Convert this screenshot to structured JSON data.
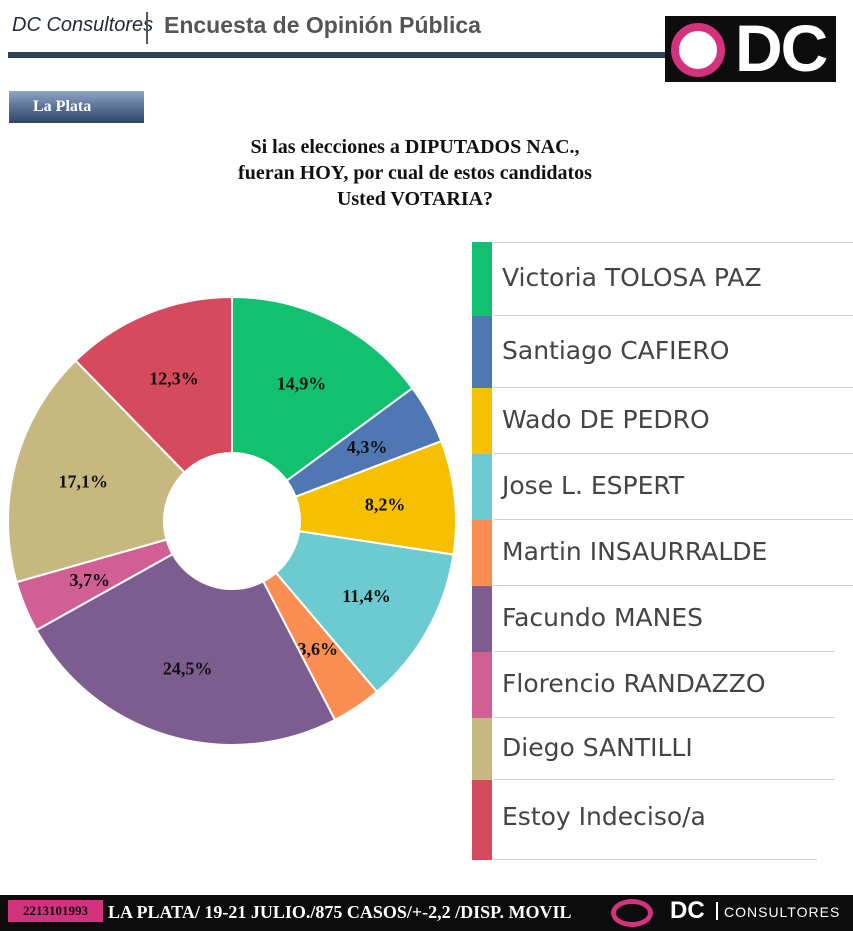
{
  "header": {
    "brand": "DC Consultores",
    "title": "Encuesta de Opinión Pública",
    "logo_text": "DC"
  },
  "city_tag": "La Plata",
  "question": {
    "line1": "Si las elecciones a DIPUTADOS NAC.,",
    "line2": "fueran HOY, por cual de estos candidatos",
    "line3": "Usted VOTARIA?"
  },
  "chart_data": {
    "type": "pie",
    "donut": true,
    "legend_position": "right",
    "slices": [
      {
        "label": "Victoria TOLOSA PAZ",
        "value": 14.9,
        "display": "14,9%",
        "color": "#12c16f"
      },
      {
        "label": "Santiago CAFIERO",
        "value": 4.3,
        "display": "4,3%",
        "color": "#4f77b4"
      },
      {
        "label": "Wado DE PEDRO",
        "value": 8.2,
        "display": "8,2%",
        "color": "#f6c001"
      },
      {
        "label": "Jose L. ESPERT",
        "value": 11.4,
        "display": "11,4%",
        "color": "#6ccbd0"
      },
      {
        "label": "Martin INSAURRALDE",
        "value": 3.6,
        "display": "3,6%",
        "color": "#fa8e52"
      },
      {
        "label": "Facundo MANES",
        "value": 24.5,
        "display": "24,5%",
        "color": "#7d5d8f"
      },
      {
        "label": "Florencio RANDAZZO",
        "value": 3.7,
        "display": "3,7%",
        "color": "#d05f94"
      },
      {
        "label": "Diego SANTILLI",
        "value": 17.1,
        "display": "17,1%",
        "color": "#c7b87f"
      },
      {
        "label": "Estoy Indeciso/a",
        "value": 12.3,
        "display": "12,3%",
        "color": "#d54a5c"
      }
    ]
  },
  "footer": {
    "phone": "2213101993",
    "text": "LA PLATA/ 19-21 JULIO./875 CASOS/+-2,2 /DISP. MOVIL",
    "brand_dc": "DC",
    "brand_suffix": "CONSULTORES"
  },
  "colors": {
    "brand_pink": "#d3327f",
    "header_bar": "#2b4258",
    "footer_bg": "#0c0c0c"
  }
}
